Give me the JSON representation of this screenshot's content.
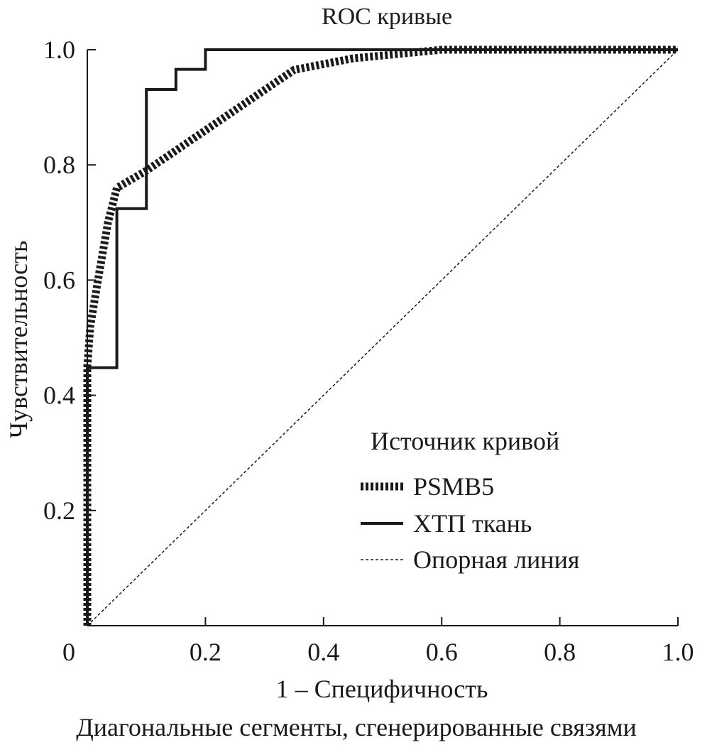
{
  "chart_data": {
    "type": "line",
    "title": "ROC кривые",
    "xlabel": "1 – Специфичность",
    "ylabel": "Чувствительность",
    "footnote": "Диагональные сегменты, сгенерированные связями",
    "xlim": [
      0,
      1
    ],
    "ylim": [
      0,
      1
    ],
    "x_ticks": [
      "0",
      "0.2",
      "0.4",
      "0.6",
      "0.8",
      "1.0"
    ],
    "x_tick_values": [
      0,
      0.2,
      0.4,
      0.6,
      0.8,
      1.0
    ],
    "y_ticks": [
      "0.2",
      "0.4",
      "0.6",
      "0.8",
      "1.0"
    ],
    "y_tick_values": [
      0.2,
      0.4,
      0.6,
      0.8,
      1.0
    ],
    "grid": false,
    "legend": {
      "title": "Источник кривой",
      "placement": "bottom-right"
    },
    "series": [
      {
        "name": "PSMB5",
        "style": "thick-dotted",
        "x": [
          0,
          0,
          0.005,
          0.018,
          0.035,
          0.05,
          0.1,
          0.2,
          0.35,
          0.45,
          0.6,
          1.0
        ],
        "y": [
          0,
          0.45,
          0.52,
          0.6,
          0.7,
          0.76,
          0.79,
          0.86,
          0.965,
          0.985,
          1.0,
          1.0
        ]
      },
      {
        "name": "ХТП ткань",
        "style": "solid",
        "x": [
          0,
          0,
          0.05,
          0.05,
          0.1,
          0.1,
          0.15,
          0.15,
          0.2,
          0.2,
          1.0
        ],
        "y": [
          0,
          0.448,
          0.448,
          0.724,
          0.724,
          0.931,
          0.931,
          0.966,
          0.966,
          1.0,
          1.0
        ]
      },
      {
        "name": "Опорная линия",
        "style": "thin-dashed",
        "x": [
          0,
          1
        ],
        "y": [
          0,
          1
        ]
      }
    ],
    "color": "#1a1a1a"
  }
}
